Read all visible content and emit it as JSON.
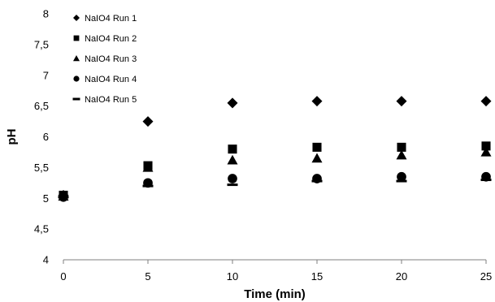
{
  "chart_data": {
    "type": "scatter",
    "xlabel": "Time (min)",
    "ylabel": "pH",
    "xlim": [
      0,
      25
    ],
    "ylim": [
      4,
      8
    ],
    "x_ticks": [
      "0",
      "5",
      "10",
      "15",
      "20",
      "25"
    ],
    "y_ticks": [
      "4",
      "4,5",
      "5",
      "5,5",
      "6",
      "6,5",
      "7",
      "7,5",
      "8"
    ],
    "grid": false,
    "legend_position": "top-left",
    "x": [
      0,
      5,
      10,
      15,
      20,
      25
    ],
    "series": [
      {
        "name": "NaIO4 Run 1",
        "marker": "diamond",
        "color": "#000000",
        "values": [
          5.05,
          6.25,
          6.55,
          6.58,
          6.58,
          6.58
        ]
      },
      {
        "name": "NaIO4 Run 2",
        "marker": "square",
        "color": "#000000",
        "values": [
          5.05,
          5.53,
          5.8,
          5.83,
          5.83,
          5.85
        ]
      },
      {
        "name": "NaIO4 Run 3",
        "marker": "triangle",
        "color": "#000000",
        "values": [
          5.03,
          5.5,
          5.62,
          5.65,
          5.7,
          5.75
        ]
      },
      {
        "name": "NaIO4 Run 4",
        "marker": "circle",
        "color": "#000000",
        "values": [
          5.02,
          5.25,
          5.32,
          5.32,
          5.35,
          5.35
        ]
      },
      {
        "name": "NaIO4 Run 5",
        "marker": "dash",
        "color": "#000000",
        "values": [
          5.02,
          5.2,
          5.22,
          5.28,
          5.28,
          5.3
        ]
      }
    ]
  }
}
